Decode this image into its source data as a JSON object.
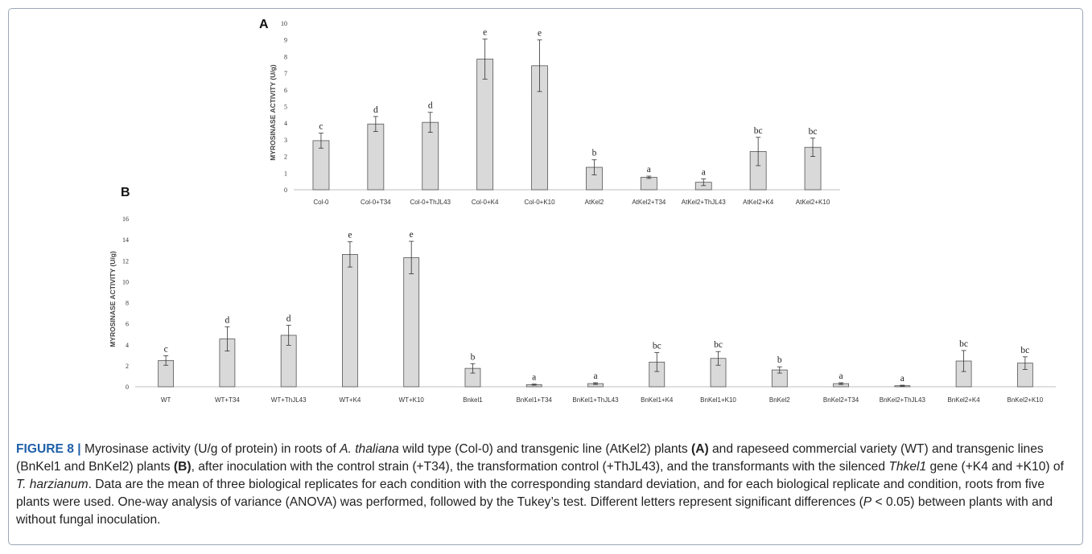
{
  "colors": {
    "bar_fill": "#d9d9d9",
    "bar_stroke": "#555555",
    "axis": "#bfbfbf",
    "caption_label": "#1f5fa8"
  },
  "chart_data": [
    {
      "type": "bar",
      "panel": "A",
      "ylabel": "MYROSINASE ACTIVITY (U/g)",
      "ylim": [
        0,
        10
      ],
      "yticks": [
        0,
        1,
        2,
        3,
        4,
        5,
        6,
        7,
        8,
        9,
        10
      ],
      "grid": false,
      "categories": [
        "Col-0",
        "Col-0+T34",
        "Col-0+ThJL43",
        "Col-0+K4",
        "Col-0+K10",
        "AtKel2",
        "AtKel2+T34",
        "AtKel2+ThJL43",
        "AtKel2+K4",
        "AtKel2+K10"
      ],
      "values": [
        2.95,
        3.95,
        4.05,
        7.85,
        7.45,
        1.35,
        0.75,
        0.45,
        2.3,
        2.55
      ],
      "errors": [
        0.45,
        0.45,
        0.6,
        1.2,
        1.55,
        0.45,
        0.07,
        0.2,
        0.85,
        0.55
      ],
      "letters": [
        "c",
        "d",
        "d",
        "e",
        "e",
        "b",
        "a",
        "a",
        "bc",
        "bc"
      ]
    },
    {
      "type": "bar",
      "panel": "B",
      "ylabel": "MYROSINASE ACTIVITY (U/g)",
      "ylim": [
        0,
        16
      ],
      "yticks": [
        0,
        2,
        4,
        6,
        8,
        10,
        12,
        14,
        16
      ],
      "grid": false,
      "categories": [
        "WT",
        "WT+T34",
        "WT+ThJL43",
        "WT+K4",
        "WT+K10",
        "Bnkel1",
        "BnKel1+T34",
        "BnKel1+ThJL43",
        "BnKel1+K4",
        "BnKel1+K10",
        "BnKel2",
        "BnKel2+T34",
        "BnKel2+ThJL43",
        "BnKel2+K4",
        "BnKel2+K10"
      ],
      "values": [
        2.5,
        4.55,
        4.9,
        12.6,
        12.3,
        1.75,
        0.2,
        0.3,
        2.35,
        2.7,
        1.6,
        0.3,
        0.1,
        2.45,
        2.25
      ],
      "errors": [
        0.45,
        1.15,
        0.95,
        1.2,
        1.55,
        0.45,
        0.05,
        0.08,
        0.9,
        0.65,
        0.3,
        0.08,
        0.05,
        1.0,
        0.6
      ],
      "letters": [
        "c",
        "d",
        "d",
        "e",
        "e",
        "b",
        "a",
        "a",
        "bc",
        "bc",
        "b",
        "a",
        "a",
        "bc",
        "bc"
      ]
    }
  ],
  "caption": {
    "label": "FIGURE 8 |",
    "parts": [
      {
        "t": " Myrosinase activity (U/g of protein) in roots of ",
        "s": "n"
      },
      {
        "t": "A. thaliana",
        "s": "i"
      },
      {
        "t": " wild type (Col-0) and transgenic line (AtKel2) plants ",
        "s": "n"
      },
      {
        "t": "(A)",
        "s": "b"
      },
      {
        "t": " and rapeseed commercial variety (WT) and transgenic lines (BnKel1 and BnKel2) plants ",
        "s": "n"
      },
      {
        "t": "(B)",
        "s": "b"
      },
      {
        "t": ", after inoculation with the control strain (+T34), the transformation control (+ThJL43), and the transformants with the silenced ",
        "s": "n"
      },
      {
        "t": "Thkel1",
        "s": "i"
      },
      {
        "t": " gene (+K4 and +K10) of ",
        "s": "n"
      },
      {
        "t": "T. harzianum",
        "s": "i"
      },
      {
        "t": ". Data are the mean of three biological replicates for each condition with the corresponding standard deviation, and for each biological replicate and condition, roots from five plants were used. One-way analysis of variance (ANOVA) was performed, followed by the Tukey’s test. Different letters represent significant differences (",
        "s": "n"
      },
      {
        "t": "P",
        "s": "i"
      },
      {
        "t": " < 0.05) between plants with and without fungal inoculation.",
        "s": "n"
      }
    ]
  }
}
